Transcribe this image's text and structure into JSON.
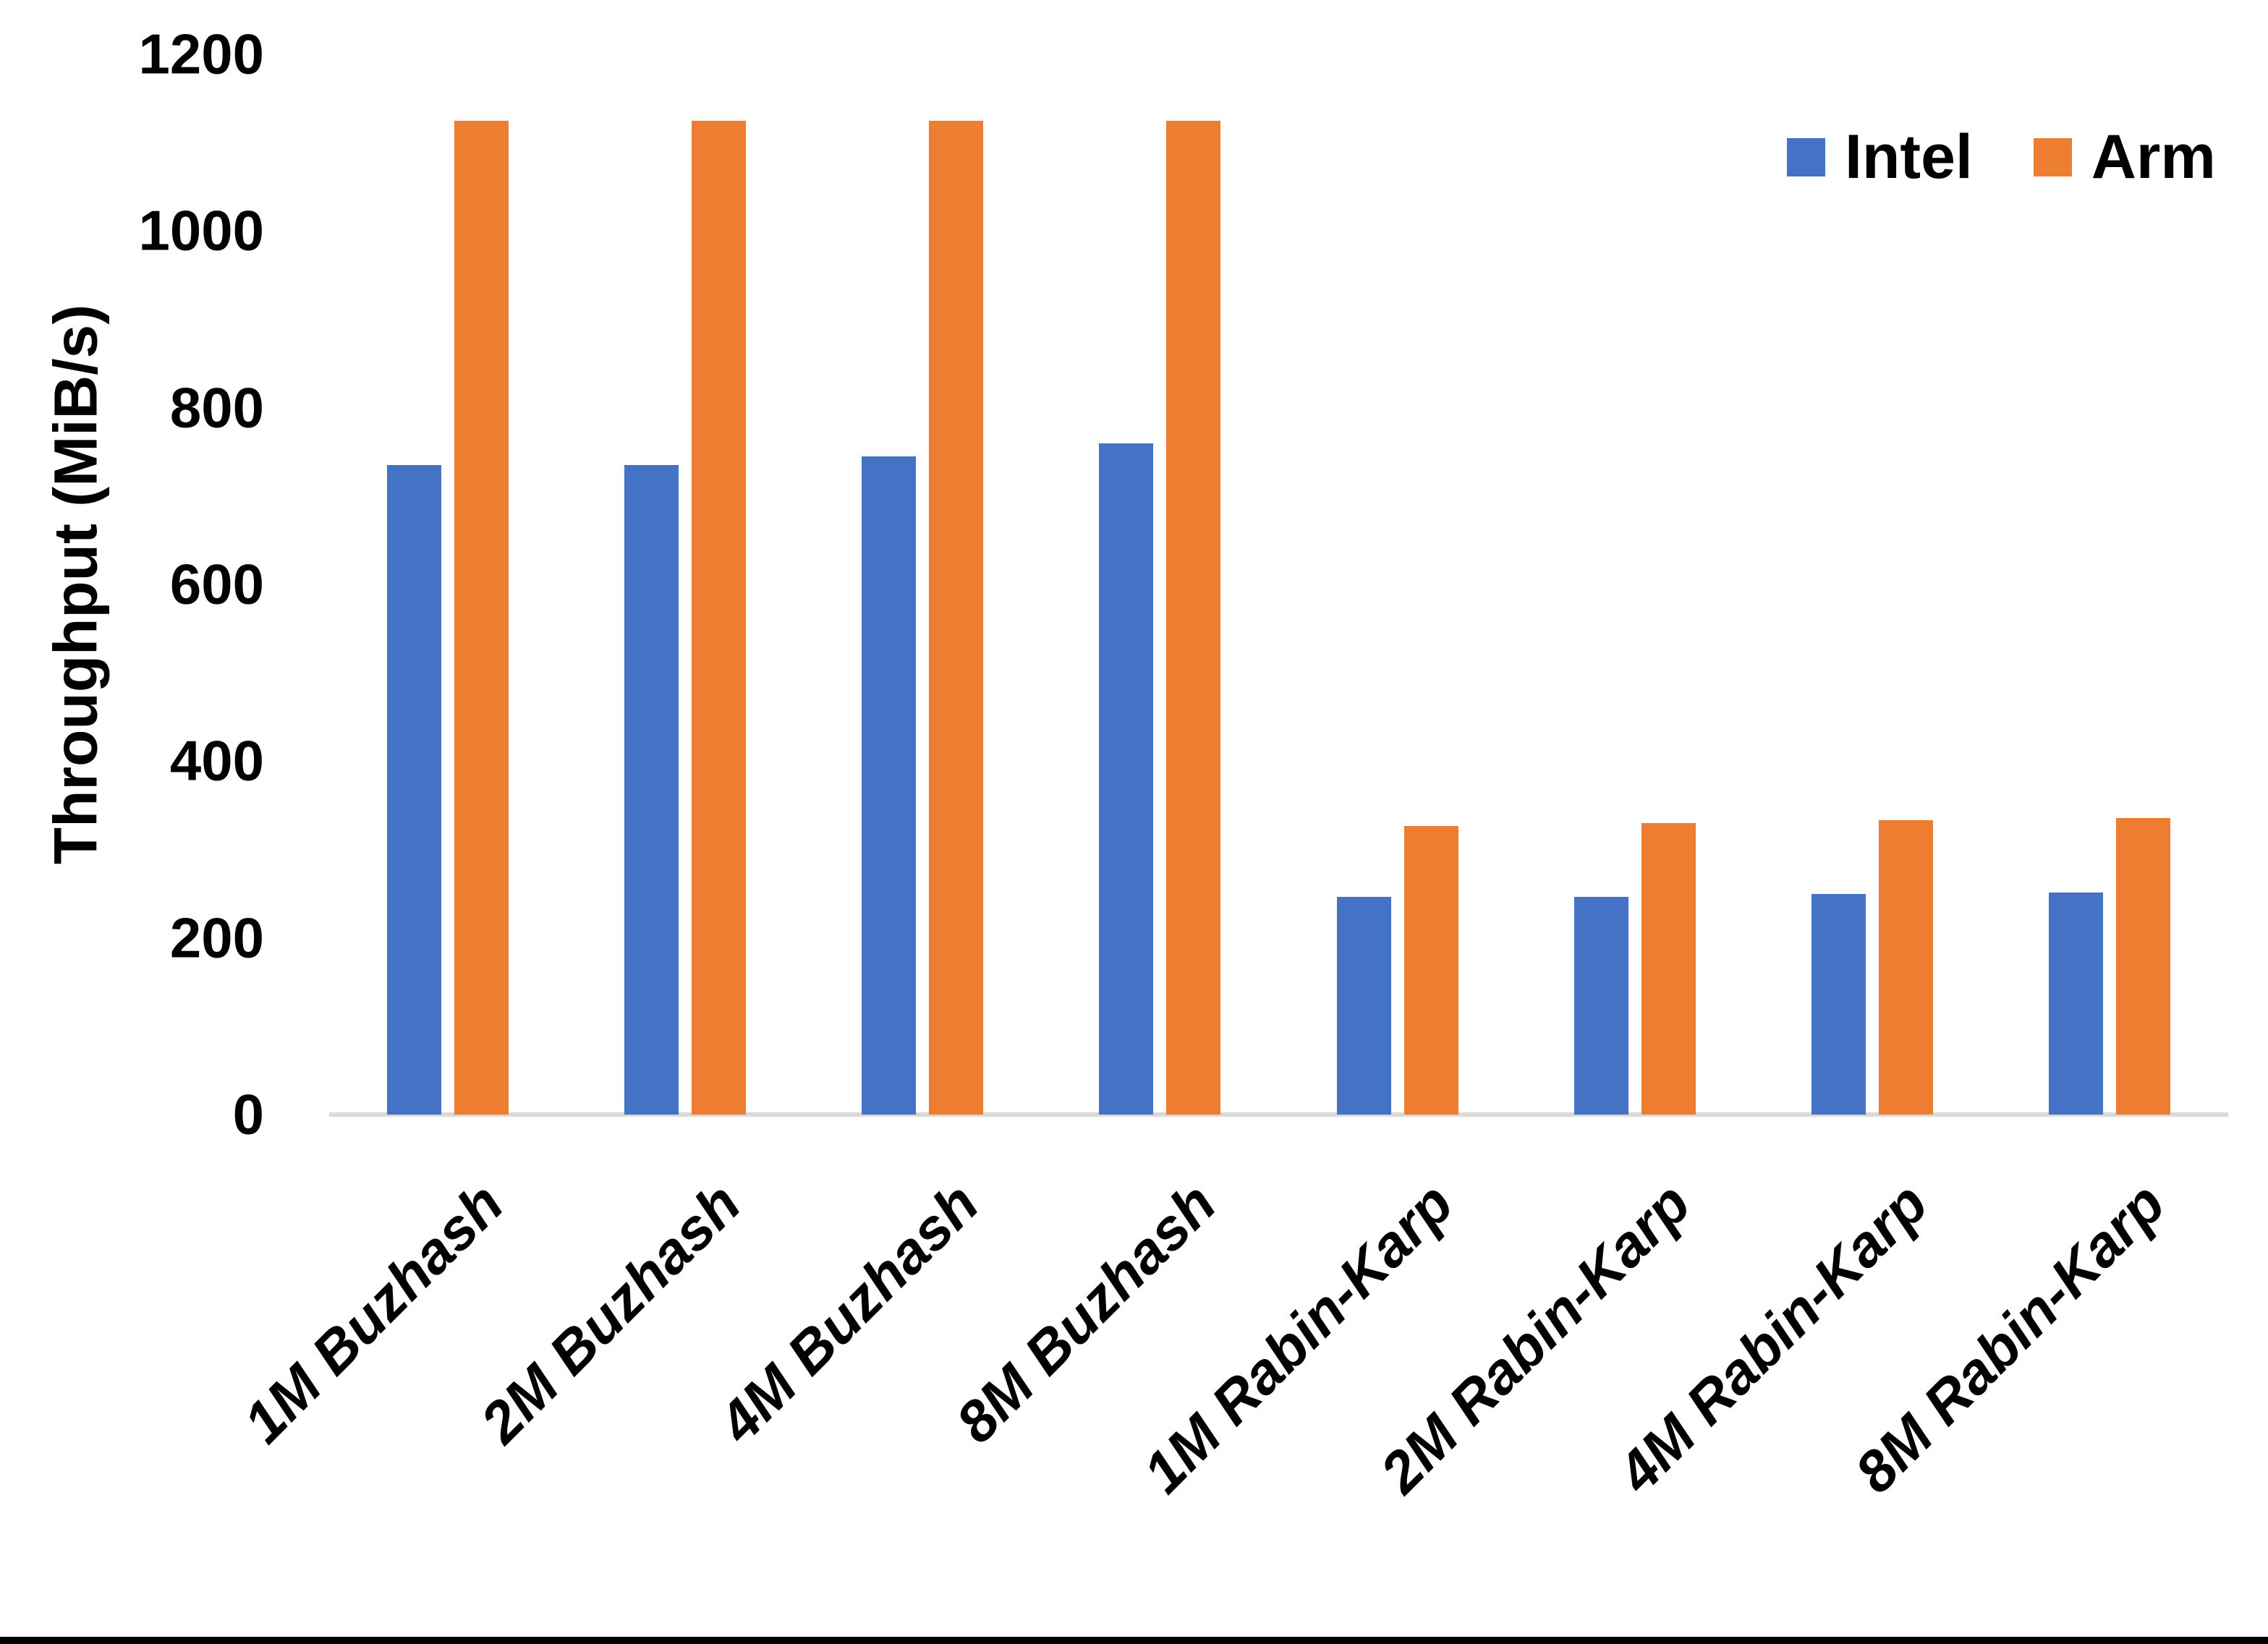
{
  "chart_data": {
    "type": "bar",
    "title": "",
    "categories": [
      "1M Buzhash",
      "2M Buzhash",
      "4M Buzhash",
      "8M Buzhash",
      "1M Rabin-Karp",
      "2M Rabin-Karp",
      "4M Rabin-Karp",
      "8M Rabin-Karp"
    ],
    "series": [
      {
        "name": "Intel",
        "color": "#4472C4",
        "values": [
          735,
          735,
          745,
          760,
          246,
          246,
          250,
          251
        ]
      },
      {
        "name": "Arm",
        "color": "#ED7D31",
        "values": [
          1125,
          1125,
          1125,
          1125,
          327,
          330,
          333,
          336
        ]
      }
    ],
    "xlabel": "",
    "ylabel": "Throughput (MiB/s)",
    "ylim": [
      0,
      1200
    ],
    "yticks": [
      0,
      200,
      400,
      600,
      800,
      1000,
      1200
    ],
    "grid": false,
    "legend_position": "top-right"
  },
  "colors": {
    "background": "#FFFFFF",
    "text": "#000000",
    "axis_line": "#D9D9D9",
    "bottom_border": "#000000"
  }
}
